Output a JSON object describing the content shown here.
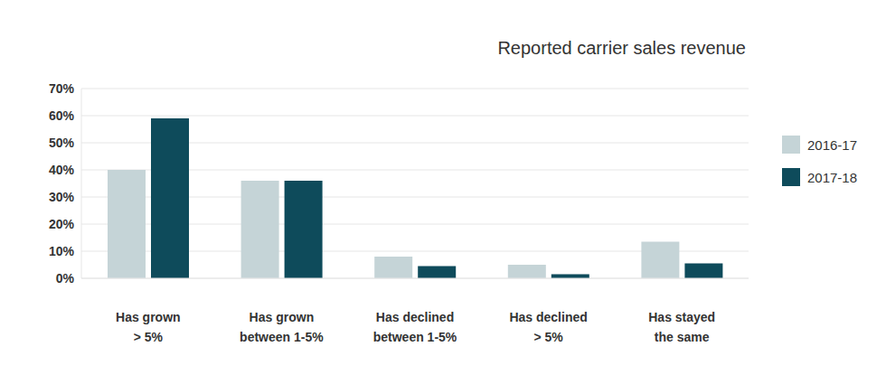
{
  "chart_data": {
    "type": "bar",
    "title": "Reported carrier sales revenue",
    "categories": [
      "Has grown > 5%",
      "Has grown between 1-5%",
      "Has declined between 1-5%",
      "Has declined > 5%",
      "Has stayed the same"
    ],
    "series": [
      {
        "name": "2016-17",
        "color": "#c5d4d7",
        "values": [
          40,
          36,
          8,
          5,
          13.5
        ]
      },
      {
        "name": "2017-18",
        "color": "#0e4b5b",
        "values": [
          59,
          36,
          4.5,
          1.5,
          5.5
        ]
      }
    ],
    "ylim": [
      0,
      70
    ],
    "yticks": [
      {
        "value": 0,
        "label": "0%"
      },
      {
        "value": 10,
        "label": "10%"
      },
      {
        "value": 20,
        "label": "20%"
      },
      {
        "value": 30,
        "label": "30%"
      },
      {
        "value": 40,
        "label": "40%"
      },
      {
        "value": 50,
        "label": "50%"
      },
      {
        "value": 60,
        "label": "60%"
      },
      {
        "value": 70,
        "label": "70%"
      }
    ],
    "grid": true,
    "legend": "right"
  }
}
